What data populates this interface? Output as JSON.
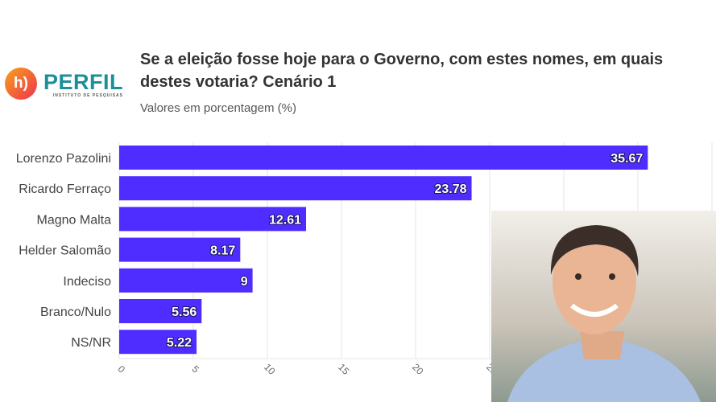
{
  "logos": {
    "left": "h)",
    "right": "PERFIL",
    "right_tagline": "INSTITUTO DE PESQUISAS"
  },
  "chart_data": {
    "type": "bar",
    "orientation": "horizontal",
    "title": "Se a eleição fosse hoje para o Governo, com estes nomes, em quais destes votaria? Cenário 1",
    "subtitle": "Valores em porcentagem (%)",
    "categories": [
      "Lorenzo Pazolini",
      "Ricardo Ferraço",
      "Magno Malta",
      "Helder Salomão",
      "Indeciso",
      "Branco/Nulo",
      "NS/NR"
    ],
    "values": [
      35.67,
      23.78,
      12.61,
      8.17,
      9,
      5.56,
      5.22
    ],
    "labels": [
      "35.67",
      "23.78",
      "12.61",
      "8.17",
      "9",
      "5.56",
      "5.22"
    ],
    "xticks": [
      "0",
      "5",
      "10",
      "15",
      "20",
      "25"
    ],
    "xlim": [
      0,
      40
    ],
    "grid": true,
    "bar_color": "#4f2cff"
  }
}
